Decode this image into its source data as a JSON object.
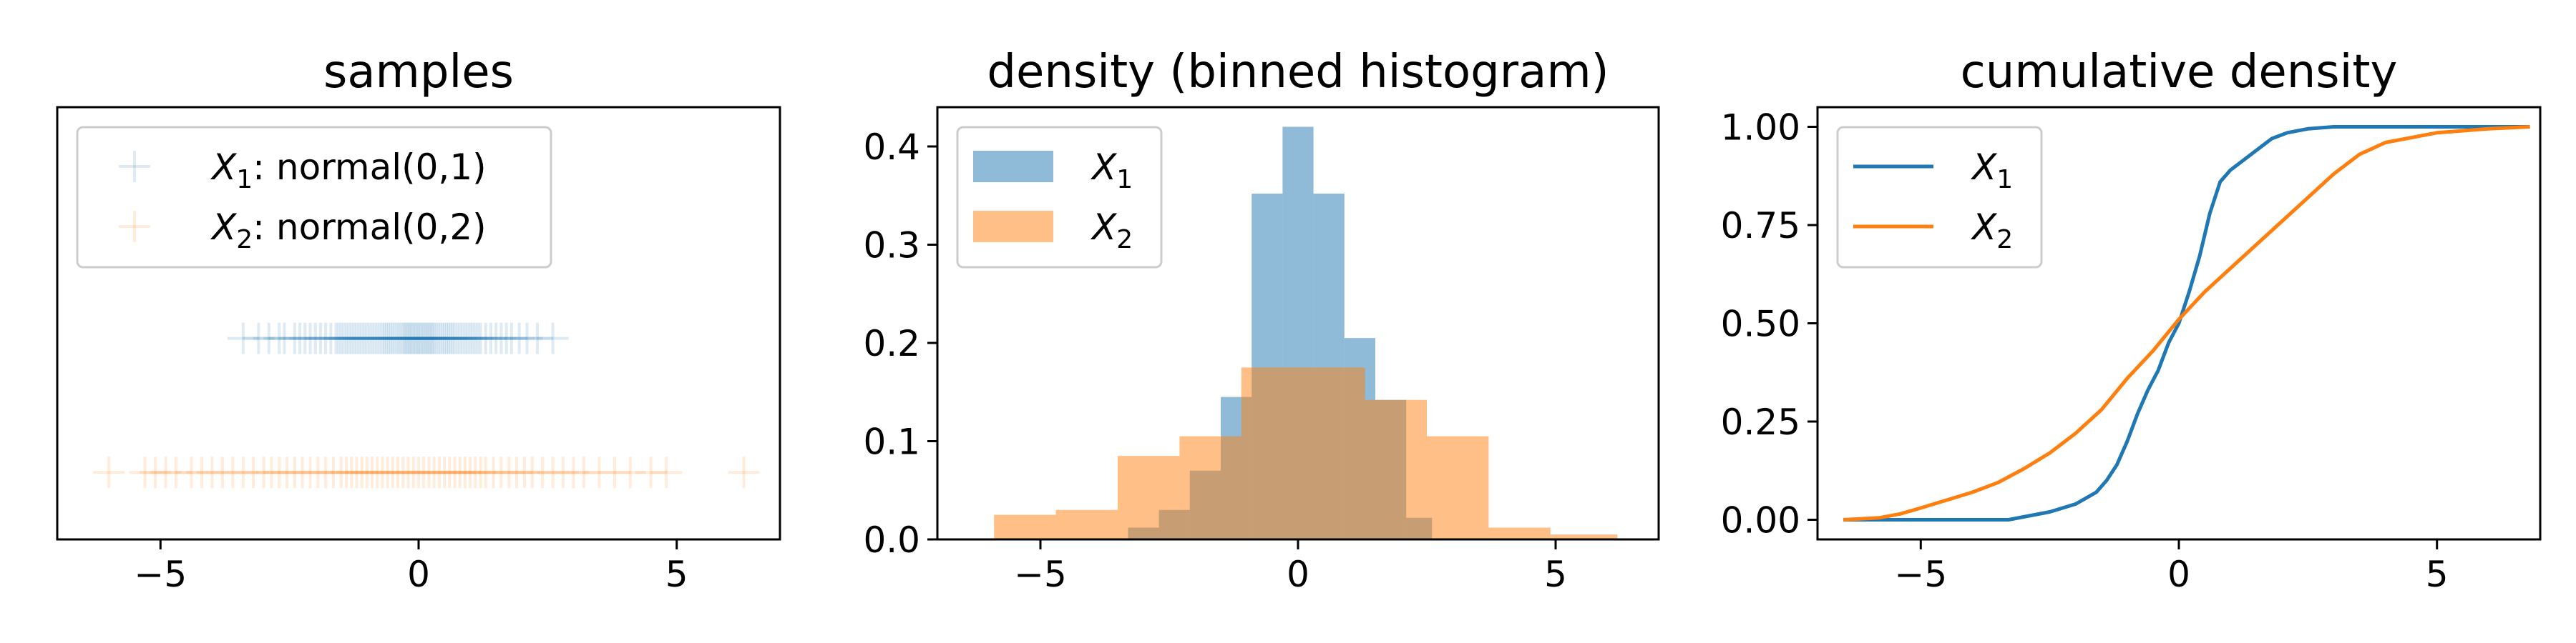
{
  "colors": {
    "x1": "#1f77b4",
    "x2": "#ff7f0e"
  },
  "chart_data": [
    {
      "type": "scatter",
      "title": "samples",
      "xlabel": "",
      "ylabel": "",
      "xlim": [
        -7,
        7
      ],
      "xticks": [
        -5,
        0,
        5
      ],
      "xtick_labels": [
        "−5",
        "0",
        "5"
      ],
      "yticks": [],
      "grid": false,
      "legend": {
        "loc": "upper-left",
        "entries": [
          {
            "var": "X",
            "sub": "1",
            "rest": ": normal(0,1)"
          },
          {
            "var": "X",
            "sub": "2",
            "rest": ": normal(0,2)"
          }
        ]
      },
      "series": [
        {
          "name": "X₁: normal(0,1)",
          "y_level": 1,
          "marker": "+",
          "alpha": 0.15,
          "x": [
            -3.4,
            -3.1,
            -2.9,
            -2.7,
            -2.6,
            -2.4,
            -2.3,
            -2.2,
            -2.1,
            -2.0,
            -1.9,
            -1.8,
            -1.7,
            -1.6,
            -1.55,
            -1.5,
            -1.45,
            -1.4,
            -1.35,
            -1.3,
            -1.25,
            -1.2,
            -1.15,
            -1.1,
            -1.05,
            -1.0,
            -0.95,
            -0.9,
            -0.85,
            -0.8,
            -0.75,
            -0.7,
            -0.66,
            -0.62,
            -0.58,
            -0.54,
            -0.5,
            -0.46,
            -0.42,
            -0.38,
            -0.34,
            -0.3,
            -0.27,
            -0.24,
            -0.21,
            -0.18,
            -0.15,
            -0.12,
            -0.09,
            -0.06,
            -0.03,
            0.0,
            0.03,
            0.06,
            0.09,
            0.12,
            0.15,
            0.18,
            0.21,
            0.24,
            0.27,
            0.3,
            0.34,
            0.38,
            0.42,
            0.46,
            0.5,
            0.54,
            0.58,
            0.62,
            0.66,
            0.7,
            0.75,
            0.8,
            0.85,
            0.9,
            0.95,
            1.0,
            1.05,
            1.1,
            1.15,
            1.2,
            1.3,
            1.4,
            1.5,
            1.6,
            1.7,
            1.8,
            1.95,
            2.1,
            2.3,
            2.6
          ]
        },
        {
          "name": "X₂: normal(0,2)",
          "y_level": 0,
          "marker": "+",
          "alpha": 0.15,
          "x": [
            -6.0,
            -5.3,
            -5.1,
            -4.9,
            -4.7,
            -4.4,
            -4.2,
            -4.0,
            -3.8,
            -3.6,
            -3.4,
            -3.2,
            -3.0,
            -2.85,
            -2.7,
            -2.55,
            -2.4,
            -2.25,
            -2.1,
            -1.95,
            -1.8,
            -1.65,
            -1.5,
            -1.4,
            -1.3,
            -1.2,
            -1.1,
            -1.0,
            -0.9,
            -0.8,
            -0.7,
            -0.6,
            -0.5,
            -0.4,
            -0.3,
            -0.2,
            -0.1,
            0.0,
            0.1,
            0.2,
            0.3,
            0.4,
            0.5,
            0.6,
            0.7,
            0.8,
            0.9,
            1.0,
            1.1,
            1.2,
            1.3,
            1.45,
            1.6,
            1.75,
            1.9,
            2.05,
            2.2,
            2.4,
            2.6,
            2.8,
            3.0,
            3.2,
            3.5,
            3.8,
            4.1,
            4.5,
            4.8,
            6.3
          ]
        }
      ]
    },
    {
      "type": "bar",
      "title": "density (binned histogram)",
      "xlabel": "",
      "ylabel": "",
      "xlim": [
        -7,
        7
      ],
      "ylim": [
        0,
        0.44
      ],
      "xticks": [
        -5,
        0,
        5
      ],
      "xtick_labels": [
        "−5",
        "0",
        "5"
      ],
      "yticks": [
        0.0,
        0.1,
        0.2,
        0.3,
        0.4
      ],
      "ytick_labels": [
        "0.0",
        "0.1",
        "0.2",
        "0.3",
        "0.4"
      ],
      "grid": false,
      "legend": {
        "loc": "upper-left",
        "entries": [
          {
            "var": "X",
            "sub": "1"
          },
          {
            "var": "X",
            "sub": "2"
          }
        ]
      },
      "series": [
        {
          "name": "X₁",
          "alpha": 0.5,
          "bin_edges": [
            -3.3,
            -2.7,
            -2.1,
            -1.5,
            -0.9,
            -0.3,
            0.3,
            0.9,
            1.5,
            2.1,
            2.6
          ],
          "values": [
            0.012,
            0.03,
            0.07,
            0.145,
            0.352,
            0.42,
            0.352,
            0.205,
            0.142,
            0.022
          ]
        },
        {
          "name": "X₂",
          "alpha": 0.5,
          "bin_edges": [
            -5.9,
            -4.7,
            -3.5,
            -2.3,
            -1.1,
            0.1,
            1.3,
            2.5,
            3.7,
            4.9,
            6.2
          ],
          "values": [
            0.025,
            0.03,
            0.085,
            0.105,
            0.175,
            0.175,
            0.142,
            0.105,
            0.012,
            0.005
          ]
        }
      ]
    },
    {
      "type": "line",
      "title": "cumulative density",
      "xlabel": "",
      "ylabel": "",
      "xlim": [
        -7,
        7
      ],
      "ylim": [
        -0.05,
        1.05
      ],
      "xticks": [
        -5,
        0,
        5
      ],
      "xtick_labels": [
        "−5",
        "0",
        "5"
      ],
      "yticks": [
        0.0,
        0.25,
        0.5,
        0.75,
        1.0
      ],
      "ytick_labels": [
        "0.00",
        "0.25",
        "0.50",
        "0.75",
        "1.00"
      ],
      "grid": false,
      "legend": {
        "loc": "upper-left",
        "entries": [
          {
            "var": "X",
            "sub": "1"
          },
          {
            "var": "X",
            "sub": "2"
          }
        ]
      },
      "series": [
        {
          "name": "X₁",
          "x": [
            -6.5,
            -3.3,
            -2.5,
            -2.0,
            -1.6,
            -1.4,
            -1.2,
            -1.0,
            -0.8,
            -0.6,
            -0.4,
            -0.2,
            0.0,
            0.2,
            0.4,
            0.6,
            0.8,
            1.0,
            1.2,
            1.4,
            1.6,
            1.8,
            2.1,
            2.5,
            3.0,
            6.8
          ],
          "y": [
            0.0,
            0.0,
            0.02,
            0.04,
            0.07,
            0.1,
            0.14,
            0.2,
            0.27,
            0.33,
            0.38,
            0.45,
            0.5,
            0.58,
            0.67,
            0.78,
            0.86,
            0.89,
            0.91,
            0.93,
            0.95,
            0.97,
            0.985,
            0.995,
            1.0,
            1.0
          ]
        },
        {
          "name": "X₂",
          "x": [
            -6.5,
            -5.8,
            -5.4,
            -5.0,
            -4.5,
            -4.0,
            -3.5,
            -3.0,
            -2.5,
            -2.0,
            -1.5,
            -1.0,
            -0.5,
            0.0,
            0.5,
            1.0,
            1.5,
            2.0,
            2.5,
            3.0,
            3.5,
            4.0,
            5.0,
            6.0,
            6.8
          ],
          "y": [
            0.0,
            0.005,
            0.015,
            0.03,
            0.05,
            0.07,
            0.095,
            0.13,
            0.17,
            0.22,
            0.28,
            0.36,
            0.43,
            0.51,
            0.58,
            0.64,
            0.7,
            0.76,
            0.82,
            0.88,
            0.93,
            0.96,
            0.985,
            0.995,
            1.0
          ]
        }
      ]
    }
  ]
}
